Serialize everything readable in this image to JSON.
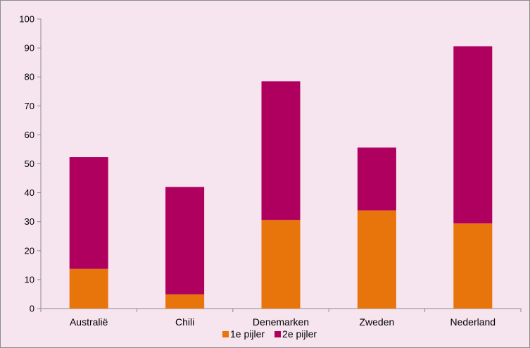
{
  "chart_data": {
    "type": "bar",
    "stacked": true,
    "categories": [
      "Australië",
      "Chili",
      "Denemarken",
      "Zweden",
      "Nederland"
    ],
    "series": [
      {
        "name": "1e pijler",
        "color": "#e8740c",
        "values": [
          13.7,
          4.9,
          30.6,
          33.9,
          29.4
        ]
      },
      {
        "name": "2e pijler",
        "color": "#b0005f",
        "values": [
          38.6,
          37.1,
          47.9,
          21.7,
          61.2
        ]
      }
    ],
    "ylim": [
      0,
      100
    ],
    "yticks": [
      0,
      10,
      20,
      30,
      40,
      50,
      60,
      70,
      80,
      90,
      100
    ],
    "grid": false,
    "legend_position": "bottom",
    "title": "",
    "xlabel": "",
    "ylabel": ""
  }
}
